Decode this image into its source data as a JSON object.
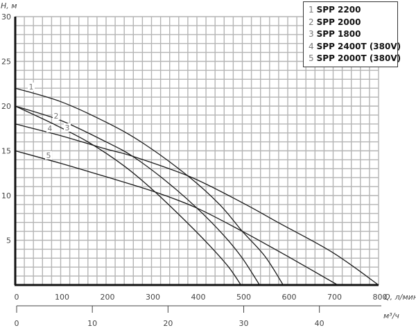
{
  "chart_data": {
    "type": "line",
    "title": "",
    "ylabel": "H, м",
    "xlabel": "Q, л/мин",
    "secondary_xlabel": "м³/ч",
    "xlim": [
      0,
      800
    ],
    "ylim": [
      0,
      30
    ],
    "grid": true,
    "x_ticks": [
      0,
      100,
      200,
      300,
      400,
      500,
      600,
      700,
      800
    ],
    "y_ticks": [
      5,
      10,
      15,
      20,
      25,
      30
    ],
    "secondary_x_ticks": [
      0,
      10,
      20,
      30,
      40
    ],
    "legend_position": "top-right",
    "series": [
      {
        "id": "1",
        "name": "SPP 2200",
        "x": [
          0,
          100,
          200,
          280,
          380,
          450,
          500,
          550,
          590
        ],
        "y": [
          22,
          20.5,
          18.2,
          15.9,
          12.2,
          9,
          6.0,
          3.2,
          0
        ]
      },
      {
        "id": "2",
        "name": "SPP 2000",
        "x": [
          0,
          100,
          200,
          258,
          330,
          400,
          460,
          500,
          538
        ],
        "y": [
          20,
          18.4,
          16.0,
          14.4,
          11.7,
          8.6,
          5.5,
          3.0,
          0
        ]
      },
      {
        "id": "3",
        "name": "SPP 1800",
        "x": [
          0,
          80,
          160,
          240,
          308,
          380,
          430,
          470,
          497
        ],
        "y": [
          20,
          18.1,
          16.0,
          13.3,
          10.4,
          6.9,
          4.3,
          2.0,
          0
        ]
      },
      {
        "id": "4",
        "name": "SPP 2400T (380V)",
        "x": [
          0,
          100,
          200,
          258,
          385,
          500,
          582,
          700,
          800
        ],
        "y": [
          18,
          16.7,
          15.2,
          14.4,
          12.1,
          9.2,
          6.9,
          3.6,
          0
        ]
      },
      {
        "id": "5",
        "name": "SPP 2000T (380V)",
        "x": [
          0,
          100,
          200,
          308,
          400,
          500,
          600,
          710
        ],
        "y": [
          15,
          13.6,
          12.1,
          10.4,
          8.6,
          6.0,
          3.2,
          0
        ]
      }
    ]
  },
  "axes": {
    "y_label": "H, м",
    "x_label": "Q, л/мин",
    "x2_label": "м³/ч",
    "y_ticks": [
      "5",
      "10",
      "15",
      "20",
      "25",
      "30"
    ],
    "x_ticks": [
      "0",
      "100",
      "200",
      "300",
      "400",
      "500",
      "600",
      "700",
      "800"
    ],
    "x2_ticks": [
      "0",
      "10",
      "20",
      "30",
      "40"
    ]
  },
  "legend": {
    "items": [
      {
        "num": "1",
        "name": "SPP 2200"
      },
      {
        "num": "2",
        "name": "SPP 2000"
      },
      {
        "num": "3",
        "name": "SPP 1800"
      },
      {
        "num": "4",
        "name": "SPP 2400T (380V)"
      },
      {
        "num": "5",
        "name": "SPP 2000T (380V)"
      }
    ]
  },
  "curve_labels": [
    "1",
    "2",
    "3",
    "4",
    "5"
  ]
}
